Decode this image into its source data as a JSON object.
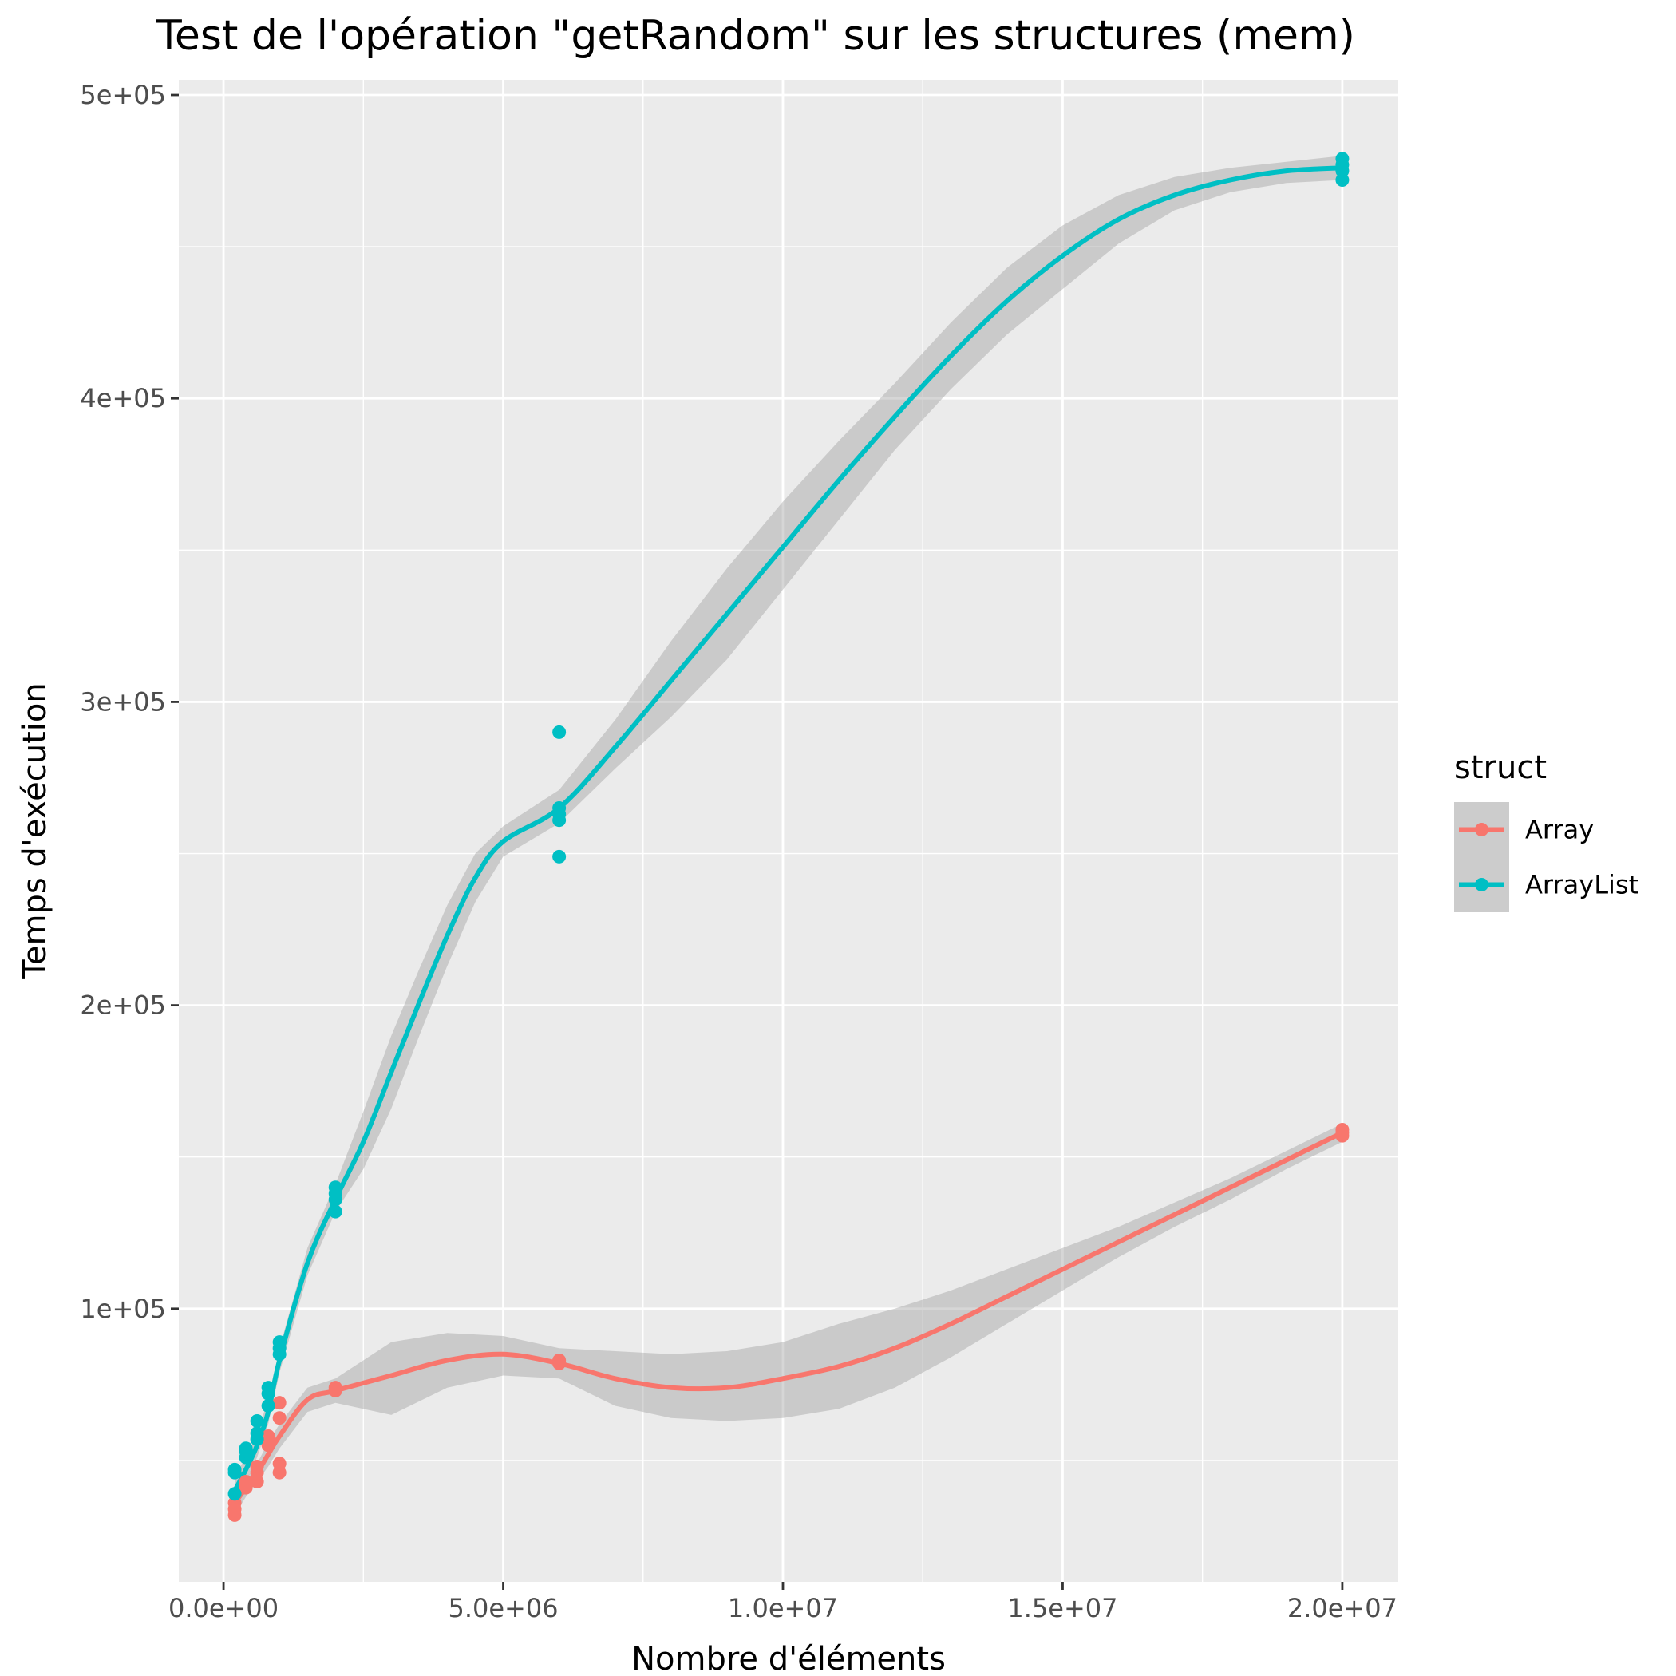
{
  "chart_data": {
    "type": "scatter",
    "title": "Test de l'opération \"getRandom\" sur les structures (mem)",
    "xlabel": "Nombre d'éléments",
    "ylabel": "Temps d'exécution",
    "xlim": [
      -800000,
      21000000
    ],
    "ylim": [
      10000,
      505000
    ],
    "x_ticks": [
      {
        "value": 0,
        "label": "0.0e+00"
      },
      {
        "value": 5000000,
        "label": "5.0e+06"
      },
      {
        "value": 10000000,
        "label": "1.0e+07"
      },
      {
        "value": 15000000,
        "label": "1.5e+07"
      },
      {
        "value": 20000000,
        "label": "2.0e+07"
      }
    ],
    "y_ticks": [
      {
        "value": 100000,
        "label": "1e+05"
      },
      {
        "value": 200000,
        "label": "2e+05"
      },
      {
        "value": 300000,
        "label": "3e+05"
      },
      {
        "value": 400000,
        "label": "4e+05"
      },
      {
        "value": 500000,
        "label": "5e+05"
      }
    ],
    "grid": true,
    "legend": {
      "title": "struct",
      "position": "right"
    },
    "series": [
      {
        "name": "Array",
        "color": "#F8766D",
        "points": [
          [
            200000,
            32000
          ],
          [
            200000,
            34000
          ],
          [
            200000,
            36000
          ],
          [
            400000,
            41000
          ],
          [
            400000,
            42000
          ],
          [
            400000,
            43000
          ],
          [
            600000,
            43000
          ],
          [
            600000,
            46000
          ],
          [
            600000,
            48000
          ],
          [
            800000,
            55000
          ],
          [
            800000,
            57000
          ],
          [
            800000,
            58000
          ],
          [
            1000000,
            46000
          ],
          [
            1000000,
            49000
          ],
          [
            1000000,
            64000
          ],
          [
            1000000,
            69000
          ],
          [
            2000000,
            73000
          ],
          [
            2000000,
            74000
          ],
          [
            6000000,
            82000
          ],
          [
            6000000,
            83000
          ],
          [
            20000000,
            157000
          ],
          [
            20000000,
            158000
          ],
          [
            20000000,
            159000
          ]
        ],
        "smooth": [
          [
            200000,
            36000
          ],
          [
            400000,
            41000
          ],
          [
            600000,
            46000
          ],
          [
            800000,
            52000
          ],
          [
            1000000,
            58000
          ],
          [
            1500000,
            70000
          ],
          [
            2000000,
            73000
          ],
          [
            3000000,
            78000
          ],
          [
            4000000,
            83000
          ],
          [
            5000000,
            85000
          ],
          [
            6000000,
            82000
          ],
          [
            7000000,
            77000
          ],
          [
            8000000,
            74000
          ],
          [
            9000000,
            74000
          ],
          [
            10000000,
            77000
          ],
          [
            11000000,
            81000
          ],
          [
            12000000,
            87000
          ],
          [
            13000000,
            95000
          ],
          [
            14000000,
            104000
          ],
          [
            15000000,
            113000
          ],
          [
            16000000,
            122000
          ],
          [
            17000000,
            131000
          ],
          [
            18000000,
            140000
          ],
          [
            19000000,
            149000
          ],
          [
            20000000,
            158000
          ]
        ],
        "band_lower": [
          [
            200000,
            32000
          ],
          [
            400000,
            38000
          ],
          [
            600000,
            43000
          ],
          [
            800000,
            48000
          ],
          [
            1000000,
            54000
          ],
          [
            1500000,
            66000
          ],
          [
            2000000,
            69000
          ],
          [
            3000000,
            65000
          ],
          [
            4000000,
            74000
          ],
          [
            5000000,
            78000
          ],
          [
            6000000,
            77000
          ],
          [
            7000000,
            68000
          ],
          [
            8000000,
            64000
          ],
          [
            9000000,
            63000
          ],
          [
            10000000,
            64000
          ],
          [
            11000000,
            67000
          ],
          [
            12000000,
            74000
          ],
          [
            13000000,
            84000
          ],
          [
            14000000,
            95000
          ],
          [
            15000000,
            106000
          ],
          [
            16000000,
            117000
          ],
          [
            17000000,
            127000
          ],
          [
            18000000,
            136000
          ],
          [
            19000000,
            146000
          ],
          [
            20000000,
            155000
          ]
        ],
        "band_upper": [
          [
            200000,
            40000
          ],
          [
            400000,
            44000
          ],
          [
            600000,
            49000
          ],
          [
            800000,
            56000
          ],
          [
            1000000,
            62000
          ],
          [
            1500000,
            74000
          ],
          [
            2000000,
            77000
          ],
          [
            3000000,
            89000
          ],
          [
            4000000,
            92000
          ],
          [
            5000000,
            91000
          ],
          [
            6000000,
            87000
          ],
          [
            7000000,
            86000
          ],
          [
            8000000,
            85000
          ],
          [
            9000000,
            86000
          ],
          [
            10000000,
            89000
          ],
          [
            11000000,
            95000
          ],
          [
            12000000,
            100000
          ],
          [
            13000000,
            106000
          ],
          [
            14000000,
            113000
          ],
          [
            15000000,
            120000
          ],
          [
            16000000,
            127000
          ],
          [
            17000000,
            135000
          ],
          [
            18000000,
            143000
          ],
          [
            19000000,
            152000
          ],
          [
            20000000,
            161000
          ]
        ]
      },
      {
        "name": "ArrayList",
        "color": "#00BFC4",
        "points": [
          [
            200000,
            39000
          ],
          [
            200000,
            46000
          ],
          [
            200000,
            47000
          ],
          [
            400000,
            51000
          ],
          [
            400000,
            53000
          ],
          [
            400000,
            54000
          ],
          [
            600000,
            57000
          ],
          [
            600000,
            59000
          ],
          [
            600000,
            63000
          ],
          [
            800000,
            68000
          ],
          [
            800000,
            72000
          ],
          [
            800000,
            74000
          ],
          [
            1000000,
            85000
          ],
          [
            1000000,
            87000
          ],
          [
            1000000,
            89000
          ],
          [
            2000000,
            132000
          ],
          [
            2000000,
            136000
          ],
          [
            2000000,
            138000
          ],
          [
            2000000,
            140000
          ],
          [
            6000000,
            249000
          ],
          [
            6000000,
            261000
          ],
          [
            6000000,
            263000
          ],
          [
            6000000,
            265000
          ],
          [
            6000000,
            290000
          ],
          [
            20000000,
            472000
          ],
          [
            20000000,
            475000
          ],
          [
            20000000,
            477000
          ],
          [
            20000000,
            479000
          ]
        ],
        "smooth": [
          [
            200000,
            40000
          ],
          [
            400000,
            47000
          ],
          [
            600000,
            55000
          ],
          [
            800000,
            66000
          ],
          [
            1000000,
            83000
          ],
          [
            1500000,
            115000
          ],
          [
            2000000,
            136000
          ],
          [
            2500000,
            155000
          ],
          [
            3000000,
            178000
          ],
          [
            3500000,
            201000
          ],
          [
            4000000,
            223000
          ],
          [
            4500000,
            242000
          ],
          [
            5000000,
            254000
          ],
          [
            6000000,
            265000
          ],
          [
            7000000,
            285000
          ],
          [
            8000000,
            307000
          ],
          [
            9000000,
            329000
          ],
          [
            10000000,
            351000
          ],
          [
            11000000,
            373000
          ],
          [
            12000000,
            394000
          ],
          [
            13000000,
            414000
          ],
          [
            14000000,
            432000
          ],
          [
            15000000,
            447000
          ],
          [
            16000000,
            459000
          ],
          [
            17000000,
            467000
          ],
          [
            18000000,
            472000
          ],
          [
            19000000,
            475000
          ],
          [
            20000000,
            476000
          ]
        ],
        "band_lower": [
          [
            200000,
            35000
          ],
          [
            400000,
            43000
          ],
          [
            600000,
            51000
          ],
          [
            800000,
            62000
          ],
          [
            1000000,
            79000
          ],
          [
            1500000,
            111000
          ],
          [
            2000000,
            132000
          ],
          [
            2500000,
            146000
          ],
          [
            3000000,
            166000
          ],
          [
            3500000,
            190000
          ],
          [
            4000000,
            213000
          ],
          [
            4500000,
            234000
          ],
          [
            5000000,
            249000
          ],
          [
            6000000,
            260000
          ],
          [
            7000000,
            278000
          ],
          [
            8000000,
            295000
          ],
          [
            9000000,
            314000
          ],
          [
            10000000,
            337000
          ],
          [
            11000000,
            360000
          ],
          [
            12000000,
            383000
          ],
          [
            13000000,
            403000
          ],
          [
            14000000,
            421000
          ],
          [
            15000000,
            436000
          ],
          [
            16000000,
            451000
          ],
          [
            17000000,
            462000
          ],
          [
            18000000,
            468000
          ],
          [
            19000000,
            471000
          ],
          [
            20000000,
            472000
          ]
        ],
        "band_upper": [
          [
            200000,
            45000
          ],
          [
            400000,
            51000
          ],
          [
            600000,
            59000
          ],
          [
            800000,
            70000
          ],
          [
            1000000,
            87000
          ],
          [
            1500000,
            120000
          ],
          [
            2000000,
            141000
          ],
          [
            2500000,
            165000
          ],
          [
            3000000,
            190000
          ],
          [
            3500000,
            212000
          ],
          [
            4000000,
            233000
          ],
          [
            4500000,
            250000
          ],
          [
            5000000,
            259000
          ],
          [
            6000000,
            271000
          ],
          [
            7000000,
            294000
          ],
          [
            8000000,
            320000
          ],
          [
            9000000,
            344000
          ],
          [
            10000000,
            366000
          ],
          [
            11000000,
            386000
          ],
          [
            12000000,
            405000
          ],
          [
            13000000,
            425000
          ],
          [
            14000000,
            443000
          ],
          [
            15000000,
            457000
          ],
          [
            16000000,
            467000
          ],
          [
            17000000,
            473000
          ],
          [
            18000000,
            476000
          ],
          [
            19000000,
            478000
          ],
          [
            20000000,
            480000
          ]
        ]
      }
    ]
  }
}
